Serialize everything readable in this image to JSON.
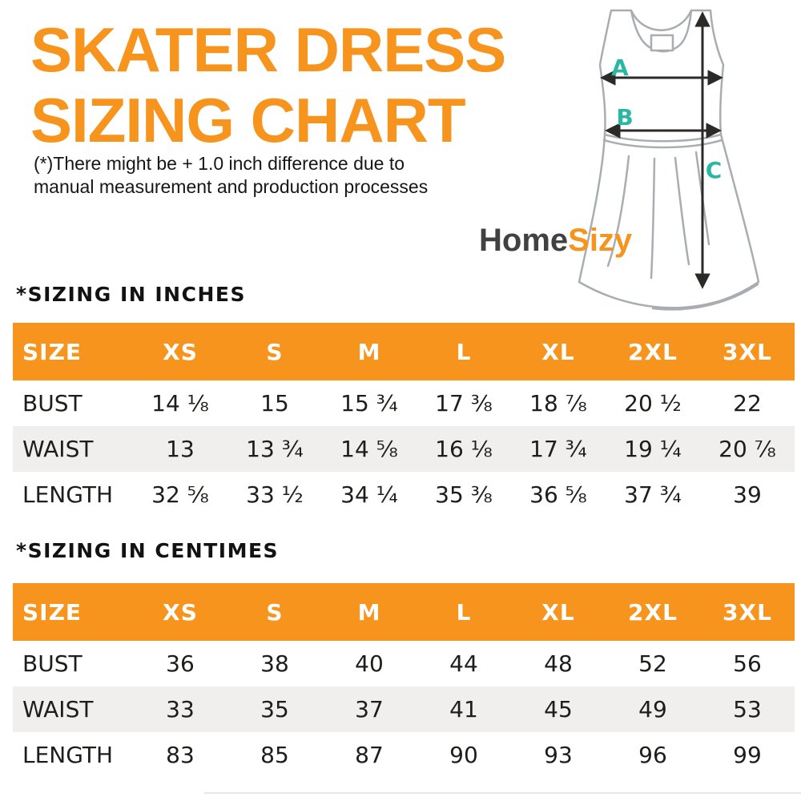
{
  "header": {
    "title_line1": "SKATER DRESS",
    "title_line2": "SIZING CHART",
    "disclaimer_line1": "(*)There might be + 1.0 inch difference due to",
    "disclaimer_line2": "manual measurement and production processes"
  },
  "brand": {
    "part1": "Home",
    "part2": "Sizy"
  },
  "diagram": {
    "labels": [
      "A",
      "B",
      "C"
    ],
    "label_color": "#2cb6a4",
    "outline_color": "#a9adb2",
    "arrow_color": "#2b2a29"
  },
  "colors": {
    "accent_orange": "#f7941d",
    "header_text": "#ffffff",
    "body_text": "#1d1d1b",
    "row_alt": "#f0efee",
    "logo_charcoal": "#414042"
  },
  "chart_data": [
    {
      "type": "table",
      "title": "*SIZING IN INCHES",
      "columns": [
        "SIZE",
        "XS",
        "S",
        "M",
        "L",
        "XL",
        "2XL",
        "3XL"
      ],
      "rows": [
        {
          "label": "BUST",
          "values": [
            "14 ⅛",
            "15",
            "15 ¾",
            "17 ⅜",
            "18 ⅞",
            "20 ½",
            "22"
          ]
        },
        {
          "label": "WAIST",
          "values": [
            "13",
            "13 ¾",
            "14 ⅝",
            "16 ⅛",
            "17 ¾",
            "19 ¼",
            "20 ⅞"
          ]
        },
        {
          "label": "LENGTH",
          "values": [
            "32 ⅝",
            "33 ½",
            "34 ¼",
            "35 ⅜",
            "36 ⅝",
            "37 ¾",
            "39"
          ]
        }
      ]
    },
    {
      "type": "table",
      "title": "*SIZING IN CENTIMES",
      "columns": [
        "SIZE",
        "XS",
        "S",
        "M",
        "L",
        "XL",
        "2XL",
        "3XL"
      ],
      "rows": [
        {
          "label": "BUST",
          "values": [
            "36",
            "38",
            "40",
            "44",
            "48",
            "52",
            "56"
          ]
        },
        {
          "label": "WAIST",
          "values": [
            "33",
            "35",
            "37",
            "41",
            "45",
            "49",
            "53"
          ]
        },
        {
          "label": "LENGTH",
          "values": [
            "83",
            "85",
            "87",
            "90",
            "93",
            "96",
            "99"
          ]
        }
      ]
    }
  ]
}
